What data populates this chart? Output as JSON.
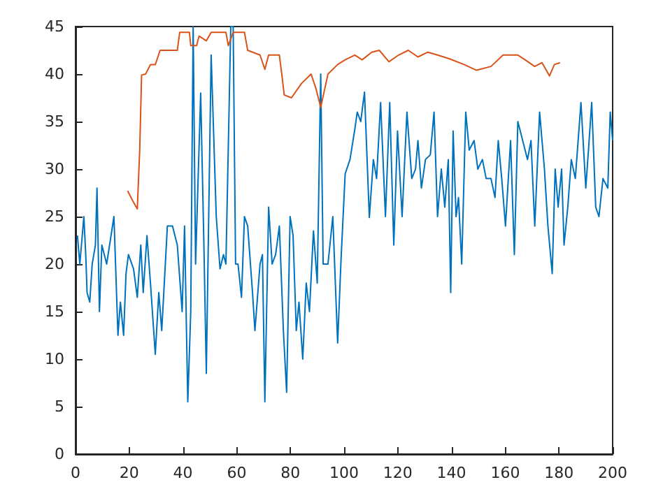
{
  "chart_data": {
    "type": "line",
    "xlim": [
      0,
      200
    ],
    "ylim": [
      0,
      45
    ],
    "xticks": [
      0,
      20,
      40,
      60,
      80,
      100,
      120,
      140,
      160,
      180,
      200
    ],
    "yticks": [
      0,
      5,
      10,
      15,
      20,
      25,
      30,
      35,
      40,
      45
    ],
    "grid": false,
    "marker": "none",
    "line_style": "solid",
    "series": [
      {
        "color": "#0072bd",
        "x": [
          0.7,
          1.6,
          3.1,
          3.8,
          4.3,
          5.3,
          6.2,
          7.4,
          8,
          8.9,
          9.8,
          11.6,
          14.3,
          15.8,
          16.7,
          17.9,
          18.8,
          19.7,
          21.6,
          23,
          24.3,
          25.2,
          26.6,
          27.9,
          29.7,
          31,
          32.1,
          34.2,
          36.1,
          37.9,
          39.7,
          40.6,
          41.8,
          42.9,
          43.8,
          44.7,
          46.6,
          47.8,
          48.7,
          50.5,
          52.4,
          53.8,
          55.1,
          56,
          57.8,
          58.7,
          59.6,
          60.5,
          61.8,
          62.9,
          64.1,
          65.9,
          66.8,
          68.7,
          69.6,
          70.5,
          71.9,
          73.2,
          74.5,
          75.9,
          77.4,
          78.6,
          79.9,
          81,
          82.2,
          83.2,
          84.6,
          85.9,
          87.1,
          88.6,
          90,
          91.3,
          92.2,
          94,
          95.8,
          97.6,
          98.9,
          100.4,
          102.2,
          104,
          104.9,
          106.2,
          107.6,
          109.4,
          110.9,
          112.1,
          113.6,
          115.4,
          117,
          118.5,
          119.9,
          121.6,
          123.4,
          125.2,
          126.6,
          127.5,
          128.8,
          130.3,
          132.1,
          133.5,
          134.8,
          136.2,
          137.5,
          138.8,
          139.7,
          140.6,
          141.7,
          142.6,
          143.8,
          145.3,
          146.6,
          148.4,
          149.8,
          151.5,
          152.9,
          154.7,
          156.2,
          157.4,
          158.7,
          160.1,
          162,
          163.4,
          164.7,
          166.5,
          168.3,
          169.6,
          171,
          172.8,
          174.6,
          175.9,
          177.5,
          178.6,
          179.7,
          181,
          181.9,
          183.3,
          184.6,
          186.1,
          188.2,
          190,
          191,
          192.2,
          193.7,
          194.9,
          196.4,
          198.2,
          199.1,
          200
        ],
        "values": [
          23,
          20,
          25,
          21,
          17,
          16,
          20,
          22,
          28,
          15,
          22,
          20,
          25,
          12.5,
          16,
          12.5,
          19,
          21,
          19.5,
          16.5,
          22,
          17,
          23,
          18,
          10.5,
          17,
          13,
          24,
          24,
          22,
          15,
          24,
          5.5,
          15,
          45,
          20,
          38,
          22,
          8.5,
          42,
          25,
          19.5,
          21,
          20,
          45,
          45,
          20,
          20,
          16.5,
          25,
          24,
          17,
          13,
          20,
          21,
          5.5,
          26,
          20,
          21,
          24,
          13,
          6.5,
          25,
          23,
          13,
          16,
          10,
          18,
          15,
          23.5,
          18,
          40,
          20,
          20,
          25,
          11.7,
          20.7,
          29.5,
          31,
          34.2,
          36,
          35,
          38.1,
          24.9,
          31,
          29,
          37,
          25,
          37,
          22,
          34,
          25,
          36,
          29,
          30,
          33,
          28,
          31,
          31.5,
          36,
          25,
          30,
          26,
          31,
          17,
          34,
          25,
          27,
          20,
          36,
          32,
          33,
          30,
          31,
          29,
          29,
          27,
          33,
          29,
          24,
          33,
          21,
          35,
          33,
          31,
          33,
          24,
          36,
          30,
          24,
          19,
          30,
          26,
          30,
          22,
          26,
          31,
          29,
          37,
          28,
          32,
          37,
          26,
          25,
          29,
          28,
          36,
          33
        ]
      },
      {
        "color": "#d95319",
        "x": [
          19.4,
          21.6,
          23,
          23.9,
          24.6,
          26.1,
          27.9,
          29.7,
          31.5,
          37.9,
          38.8,
          42.4,
          42.9,
          45.1,
          46,
          48.7,
          50.5,
          56,
          56.9,
          58.7,
          62.9,
          64.1,
          68.7,
          70.5,
          71.9,
          75.9,
          76.8,
          77.7,
          80.4,
          84.1,
          87.7,
          89.5,
          91.3,
          94,
          97.6,
          100.4,
          104,
          106.7,
          110.3,
          113.1,
          116.7,
          120.3,
          123.9,
          127.5,
          131.2,
          134.8,
          139.3,
          144.7,
          149.3,
          154.7,
          159.2,
          164.7,
          167.4,
          171,
          173.7,
          176.5,
          178.3,
          180.4
        ],
        "values": [
          27.7,
          26.5,
          25.8,
          32,
          39.9,
          40,
          41,
          41,
          42.5,
          42.5,
          44.4,
          44.4,
          43,
          43,
          44,
          43.5,
          44.4,
          44.4,
          43,
          44.4,
          44.4,
          42.5,
          42,
          40.5,
          42,
          42,
          40,
          37.8,
          37.5,
          39,
          40,
          38.5,
          36.5,
          40,
          41,
          41.5,
          42,
          41.5,
          42.3,
          42.5,
          41.3,
          42,
          42.5,
          41.8,
          42.3,
          42,
          41.6,
          41,
          40.4,
          40.8,
          42,
          42,
          41.5,
          40.8,
          41.2,
          39.8,
          41,
          41.2
        ]
      }
    ]
  }
}
